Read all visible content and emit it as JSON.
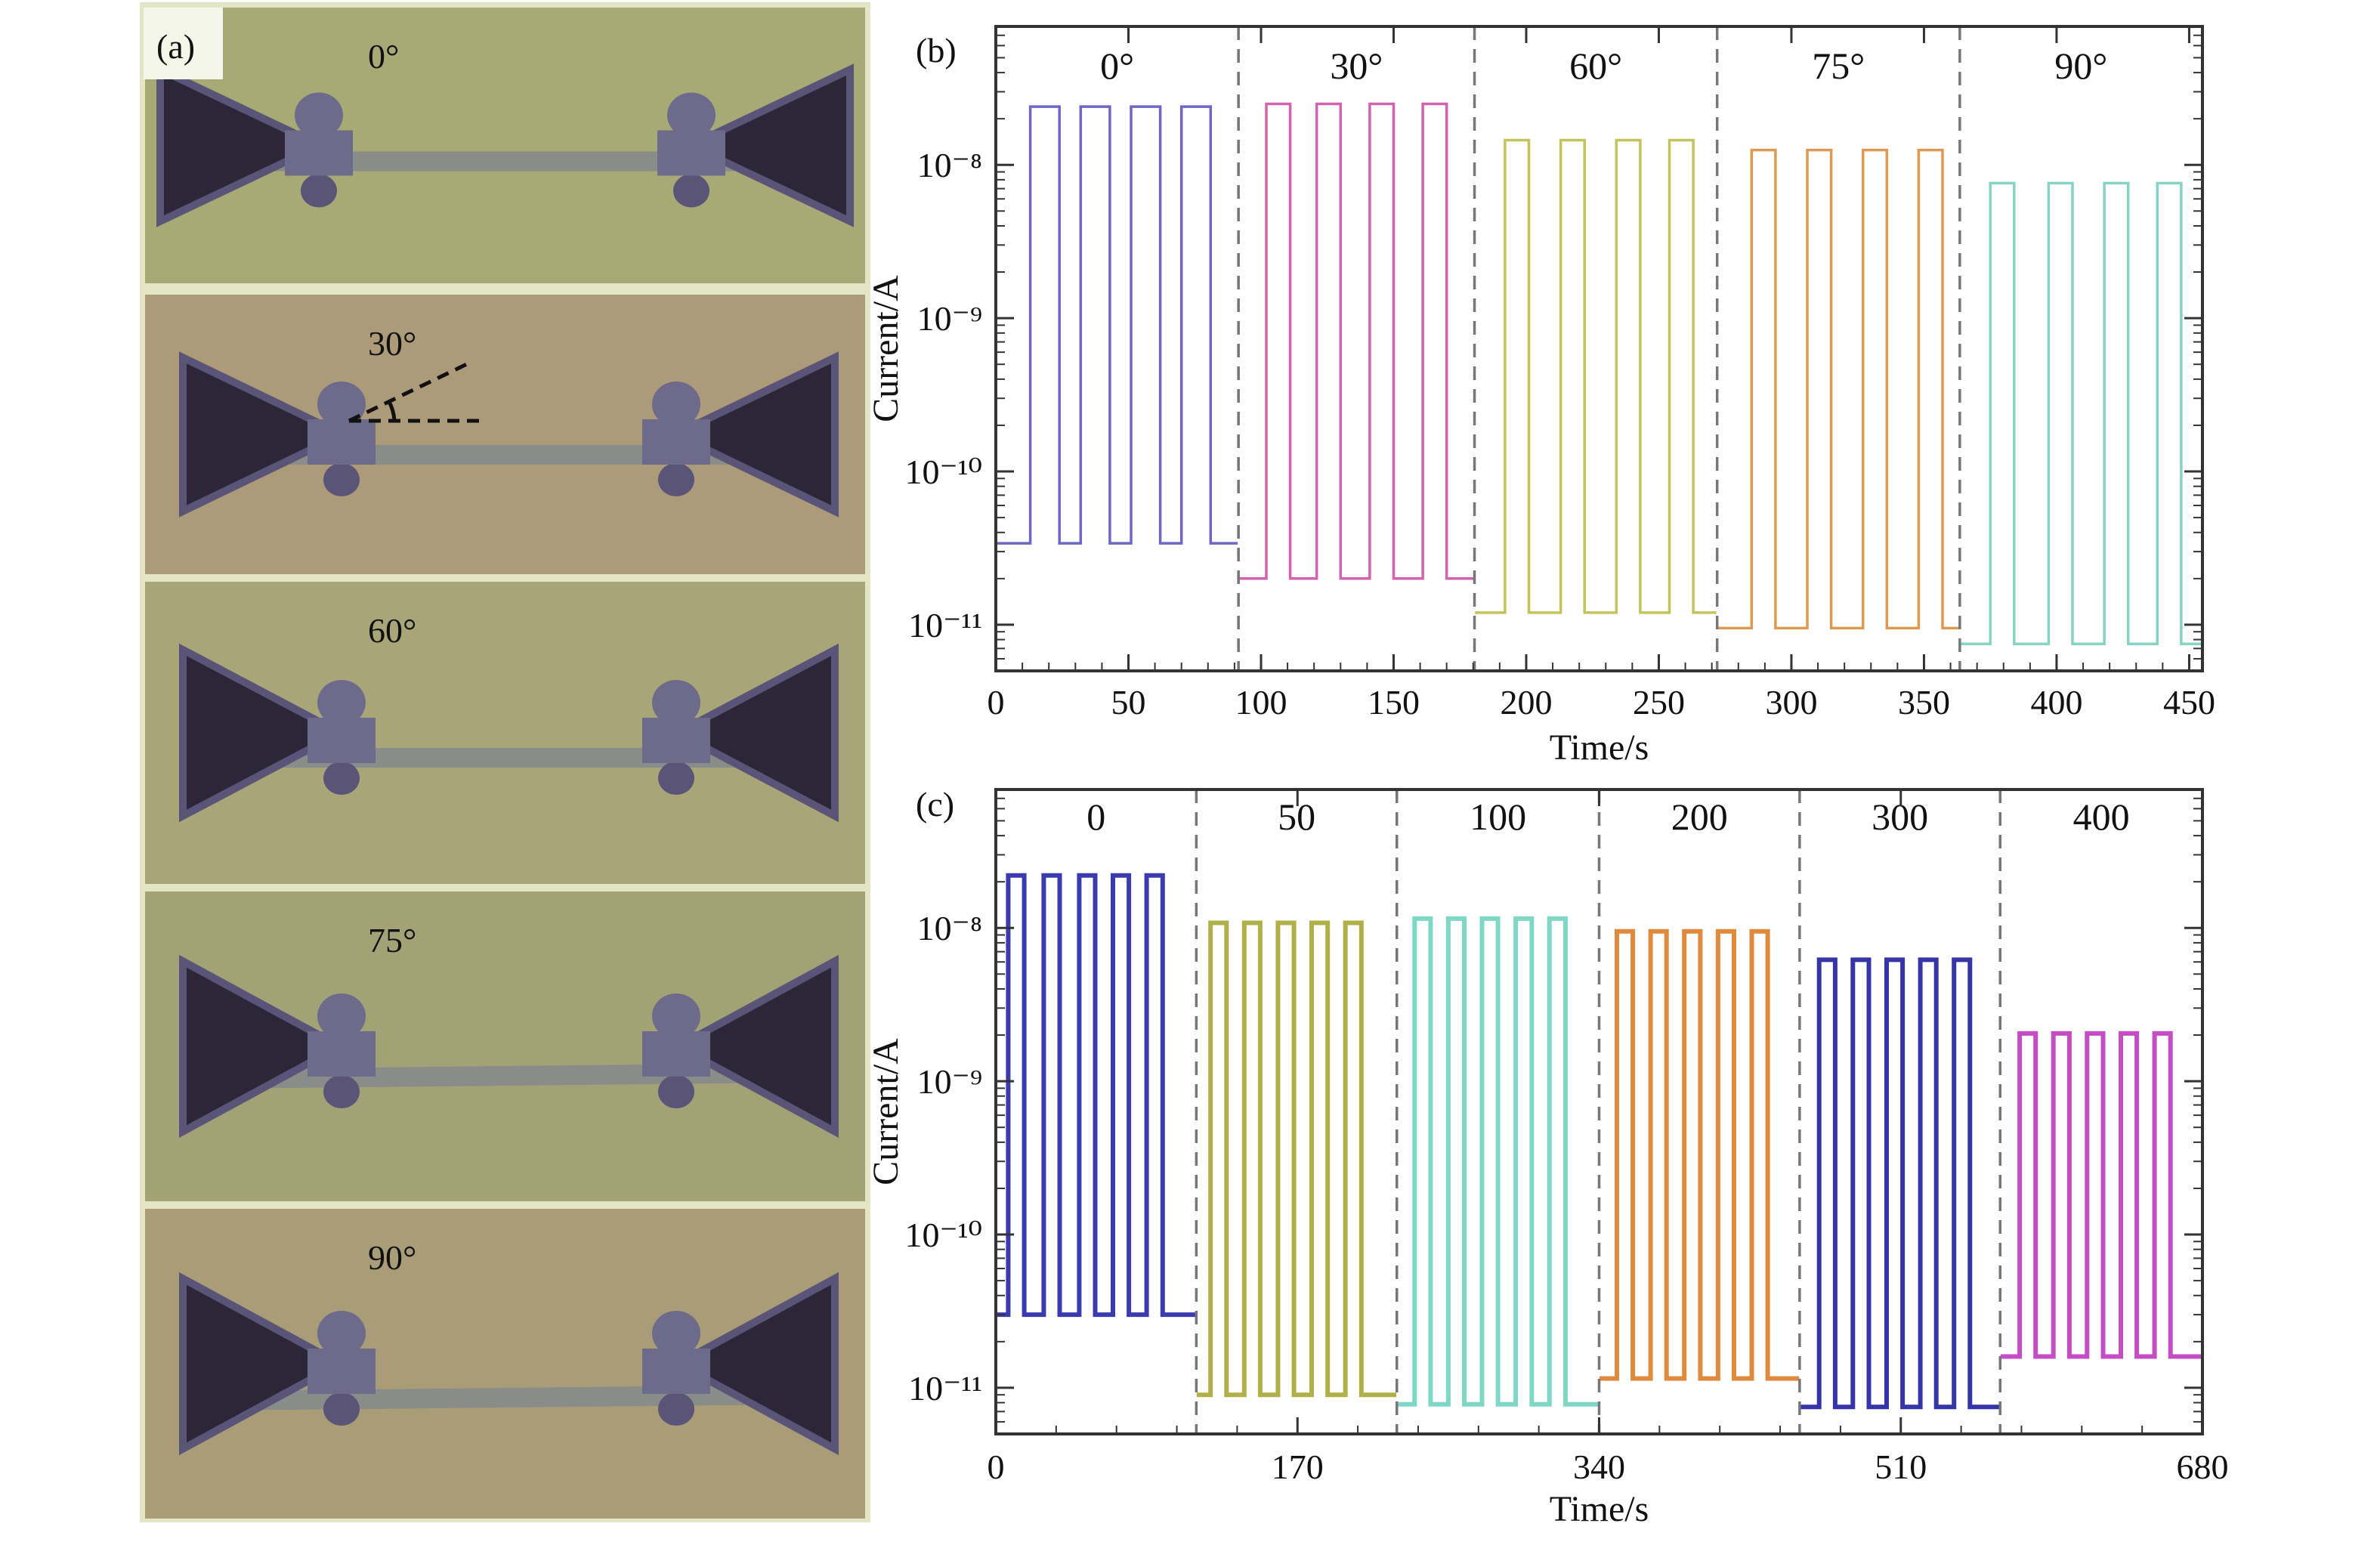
{
  "panel_a": {
    "label": "(a)",
    "photos": [
      {
        "angle": "0°",
        "bg": "#a7aa74"
      },
      {
        "angle": "30°",
        "bg": "#ad9a78"
      },
      {
        "angle": "60°",
        "bg": "#a8a679"
      },
      {
        "angle": "75°",
        "bg": "#a3a276"
      },
      {
        "angle": "90°",
        "bg": "#a99d78"
      }
    ],
    "colors": {
      "antenna": "#5a5478",
      "antenna_dark": "#2b2738",
      "clamp": "#6e6a8c",
      "rod": "#8a8c8a",
      "frame": "#e2e6c4"
    }
  },
  "chart_data": [
    {
      "panel": "(b)",
      "type": "line",
      "y_scale": "log",
      "xlabel": "Time/s",
      "ylabel": "Current/A",
      "xlim": [
        0,
        455
      ],
      "ylim": [
        5e-12,
        8e-08
      ],
      "xticks": [
        "0",
        "50",
        "100",
        "150",
        "200",
        "250",
        "300",
        "350",
        "400",
        "450"
      ],
      "yticks": [
        "10⁻⁸",
        "10⁻⁹",
        "10⁻¹⁰",
        "10⁻¹¹"
      ],
      "grid": false,
      "segment_boundaries": [
        91.5,
        180.5,
        272,
        363.5
      ],
      "series": [
        {
          "name": "0°",
          "x_range": [
            0,
            91.5
          ],
          "on_intervals": [
            [
              13,
              24
            ],
            [
              32,
              43
            ],
            [
              51,
              62
            ],
            [
              70,
              81
            ]
          ],
          "on_current": 2.4e-08,
          "off_current": 3.4e-11,
          "color": "#6e67c8"
        },
        {
          "name": "30°",
          "x_range": [
            91.5,
            180.5
          ],
          "on_intervals": [
            [
              102,
              111
            ],
            [
              121,
              130
            ],
            [
              141,
              150
            ],
            [
              161,
              170
            ]
          ],
          "on_current": 2.5e-08,
          "off_current": 2e-11,
          "color": "#d263b0"
        },
        {
          "name": "60°",
          "x_range": [
            180.5,
            272
          ],
          "on_intervals": [
            [
              192,
              201
            ],
            [
              213,
              222
            ],
            [
              234,
              243
            ],
            [
              254,
              263
            ]
          ],
          "on_current": 1.45e-08,
          "off_current": 1.2e-11,
          "color": "#c4c45a"
        },
        {
          "name": "75°",
          "x_range": [
            272,
            363.5
          ],
          "on_intervals": [
            [
              285,
              294
            ],
            [
              306,
              315
            ],
            [
              327,
              336
            ],
            [
              348,
              357
            ]
          ],
          "on_current": 1.25e-08,
          "off_current": 9.5e-12,
          "color": "#de9a52"
        },
        {
          "name": "90°",
          "x_range": [
            363.5,
            455
          ],
          "on_intervals": [
            [
              375,
              384
            ],
            [
              397,
              406
            ],
            [
              418,
              427
            ],
            [
              438,
              447
            ]
          ],
          "on_current": 7.6e-09,
          "off_current": 7.5e-12,
          "color": "#86d4c4"
        }
      ]
    },
    {
      "panel": "(c)",
      "type": "line",
      "y_scale": "log",
      "xlabel": "Time/s",
      "ylabel": "Current/A",
      "xlim": [
        0,
        680
      ],
      "ylim": [
        5e-12,
        8e-08
      ],
      "xticks": [
        "0",
        "170",
        "340",
        "510",
        "680"
      ],
      "yticks": [
        "10⁻⁸",
        "10⁻⁹",
        "10⁻¹⁰",
        "10⁻¹¹"
      ],
      "grid": false,
      "segment_boundaries": [
        113,
        226,
        340,
        453,
        566
      ],
      "series": [
        {
          "name": "0",
          "x_range": [
            0,
            113
          ],
          "on_intervals": [
            [
              7,
              16
            ],
            [
              27,
              36
            ],
            [
              47,
              56
            ],
            [
              66,
              75
            ],
            [
              85,
              94
            ]
          ],
          "on_current": 2.2e-08,
          "off_current": 3e-11,
          "color": "#3b3bb0"
        },
        {
          "name": "50",
          "x_range": [
            113,
            226
          ],
          "on_intervals": [
            [
              121,
              130
            ],
            [
              140,
              149
            ],
            [
              159,
              168
            ],
            [
              178,
              187
            ],
            [
              197,
              206
            ]
          ],
          "on_current": 1.08e-08,
          "off_current": 9e-12,
          "color": "#b0b04a"
        },
        {
          "name": "100",
          "x_range": [
            226,
            340
          ],
          "on_intervals": [
            [
              236,
              245
            ],
            [
              255,
              264
            ],
            [
              274,
              283
            ],
            [
              293,
              302
            ],
            [
              312,
              321
            ]
          ],
          "on_current": 1.15e-08,
          "off_current": 7.8e-12,
          "color": "#7fd8c6"
        },
        {
          "name": "200",
          "x_range": [
            340,
            453
          ],
          "on_intervals": [
            [
              350,
              359
            ],
            [
              369,
              378
            ],
            [
              388,
              397
            ],
            [
              407,
              416
            ],
            [
              426,
              435
            ]
          ],
          "on_current": 9.5e-09,
          "off_current": 1.15e-11,
          "color": "#e08a3e"
        },
        {
          "name": "300",
          "x_range": [
            453,
            566
          ],
          "on_intervals": [
            [
              464,
              473
            ],
            [
              483,
              492
            ],
            [
              502,
              511
            ],
            [
              521,
              530
            ],
            [
              540,
              549
            ]
          ],
          "on_current": 6.2e-09,
          "off_current": 7.5e-12,
          "color": "#3535a8"
        },
        {
          "name": "400",
          "x_range": [
            566,
            680
          ],
          "on_intervals": [
            [
              577,
              586
            ],
            [
              596,
              605
            ],
            [
              615,
              624
            ],
            [
              634,
              643
            ],
            [
              653,
              662
            ]
          ],
          "on_current": 2.05e-09,
          "off_current": 1.6e-11,
          "color": "#c44cc4"
        }
      ]
    }
  ]
}
